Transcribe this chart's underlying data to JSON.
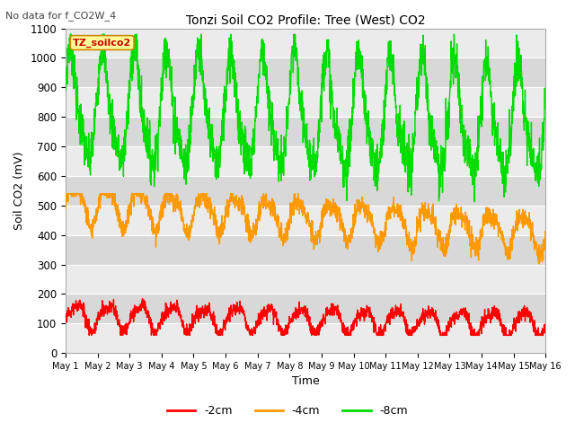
{
  "title": "Tonzi Soil CO2 Profile: Tree (West) CO2",
  "subtitle": "No data for f_CO2W_4",
  "ylabel": "Soil CO2 (mV)",
  "xlabel": "Time",
  "legend_label": "TZ_soilco2",
  "legend_box_color": "#ffff99",
  "legend_box_edge": "#cc8800",
  "ylim": [
    0,
    1100
  ],
  "xlim": [
    0,
    15
  ],
  "xtick_labels": [
    "May 1",
    "May 2",
    "May 3",
    "May 4",
    "May 5",
    "May 6",
    "May 7",
    "May 8",
    "May 9",
    "May 10",
    "May 11",
    "May 12",
    "May 13",
    "May 14",
    "May 15",
    "May 16"
  ],
  "ytick_values": [
    0,
    100,
    200,
    300,
    400,
    500,
    600,
    700,
    800,
    900,
    1000,
    1100
  ],
  "color_2cm": "#ff0000",
  "color_4cm": "#ff9900",
  "color_8cm": "#00dd00",
  "bg_color": "#ffffff",
  "plot_bg_light": "#ebebeb",
  "plot_bg_dark": "#d8d8d8",
  "line_width": 1.0
}
